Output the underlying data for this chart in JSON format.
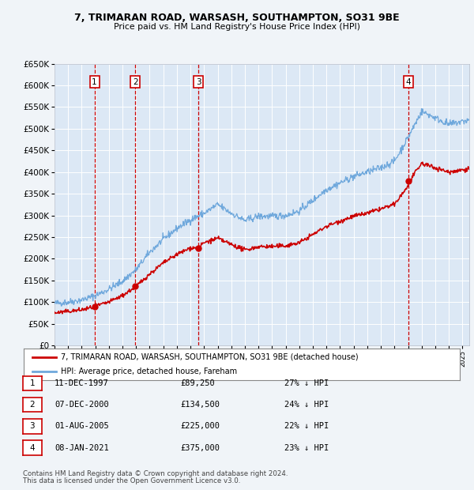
{
  "title1": "7, TRIMARAN ROAD, WARSASH, SOUTHAMPTON, SO31 9BE",
  "title2": "Price paid vs. HM Land Registry's House Price Index (HPI)",
  "fig_bg_color": "#f0f4f8",
  "plot_bg_color": "#dce8f5",
  "grid_color": "#ffffff",
  "purchases": [
    {
      "label": "1",
      "date": "11-DEC-1997",
      "price": 89250,
      "hpi_pct": "27% ↓ HPI",
      "x_year": 1997.94
    },
    {
      "label": "2",
      "date": "07-DEC-2000",
      "price": 134500,
      "hpi_pct": "24% ↓ HPI",
      "x_year": 2000.93
    },
    {
      "label": "3",
      "date": "01-AUG-2005",
      "price": 225000,
      "hpi_pct": "22% ↓ HPI",
      "x_year": 2005.58
    },
    {
      "label": "4",
      "date": "08-JAN-2021",
      "price": 375000,
      "hpi_pct": "23% ↓ HPI",
      "x_year": 2021.03
    }
  ],
  "legend_line1": "7, TRIMARAN ROAD, WARSASH, SOUTHAMPTON, SO31 9BE (detached house)",
  "legend_line2": "HPI: Average price, detached house, Fareham",
  "footer1": "Contains HM Land Registry data © Crown copyright and database right 2024.",
  "footer2": "This data is licensed under the Open Government Licence v3.0.",
  "ylim": [
    0,
    650000
  ],
  "xlim_start": 1995.0,
  "xlim_end": 2025.5,
  "hpi_line_color": "#6fa8dc",
  "price_line_color": "#cc0000",
  "dashed_color": "#cc0000",
  "hpi_anchors_x": [
    1995.0,
    1996.0,
    1997.0,
    1998.0,
    1999.0,
    2000.0,
    2001.0,
    2002.0,
    2003.0,
    2004.0,
    2005.0,
    2006.0,
    2007.0,
    2008.0,
    2009.0,
    2010.0,
    2011.0,
    2012.0,
    2013.0,
    2014.0,
    2015.0,
    2016.0,
    2017.0,
    2018.0,
    2019.0,
    2020.0,
    2021.0,
    2022.0,
    2023.0,
    2024.0,
    2025.5
  ],
  "hpi_anchors_y": [
    97000,
    100000,
    105000,
    115000,
    130000,
    148000,
    175000,
    215000,
    245000,
    270000,
    290000,
    305000,
    325000,
    305000,
    288000,
    298000,
    298000,
    300000,
    310000,
    335000,
    360000,
    375000,
    390000,
    400000,
    410000,
    425000,
    480000,
    540000,
    525000,
    510000,
    520000
  ],
  "red_anchors_x": [
    1995.0,
    1997.0,
    1997.94,
    1999.0,
    2000.0,
    2000.93,
    2002.0,
    2003.0,
    2004.0,
    2005.0,
    2005.58,
    2006.0,
    2007.0,
    2008.0,
    2009.0,
    2010.0,
    2011.0,
    2012.0,
    2013.0,
    2014.0,
    2015.0,
    2016.0,
    2017.0,
    2018.0,
    2019.0,
    2020.0,
    2021.0,
    2021.03,
    2022.0,
    2023.0,
    2024.0,
    2025.5
  ],
  "red_anchors_y": [
    75000,
    82000,
    89250,
    100000,
    115000,
    134500,
    165000,
    190000,
    210000,
    225000,
    225000,
    237000,
    247000,
    233000,
    220000,
    228000,
    228000,
    230000,
    237000,
    256000,
    275000,
    287000,
    298000,
    305000,
    315000,
    325000,
    368000,
    375000,
    420000,
    410000,
    400000,
    408000
  ]
}
